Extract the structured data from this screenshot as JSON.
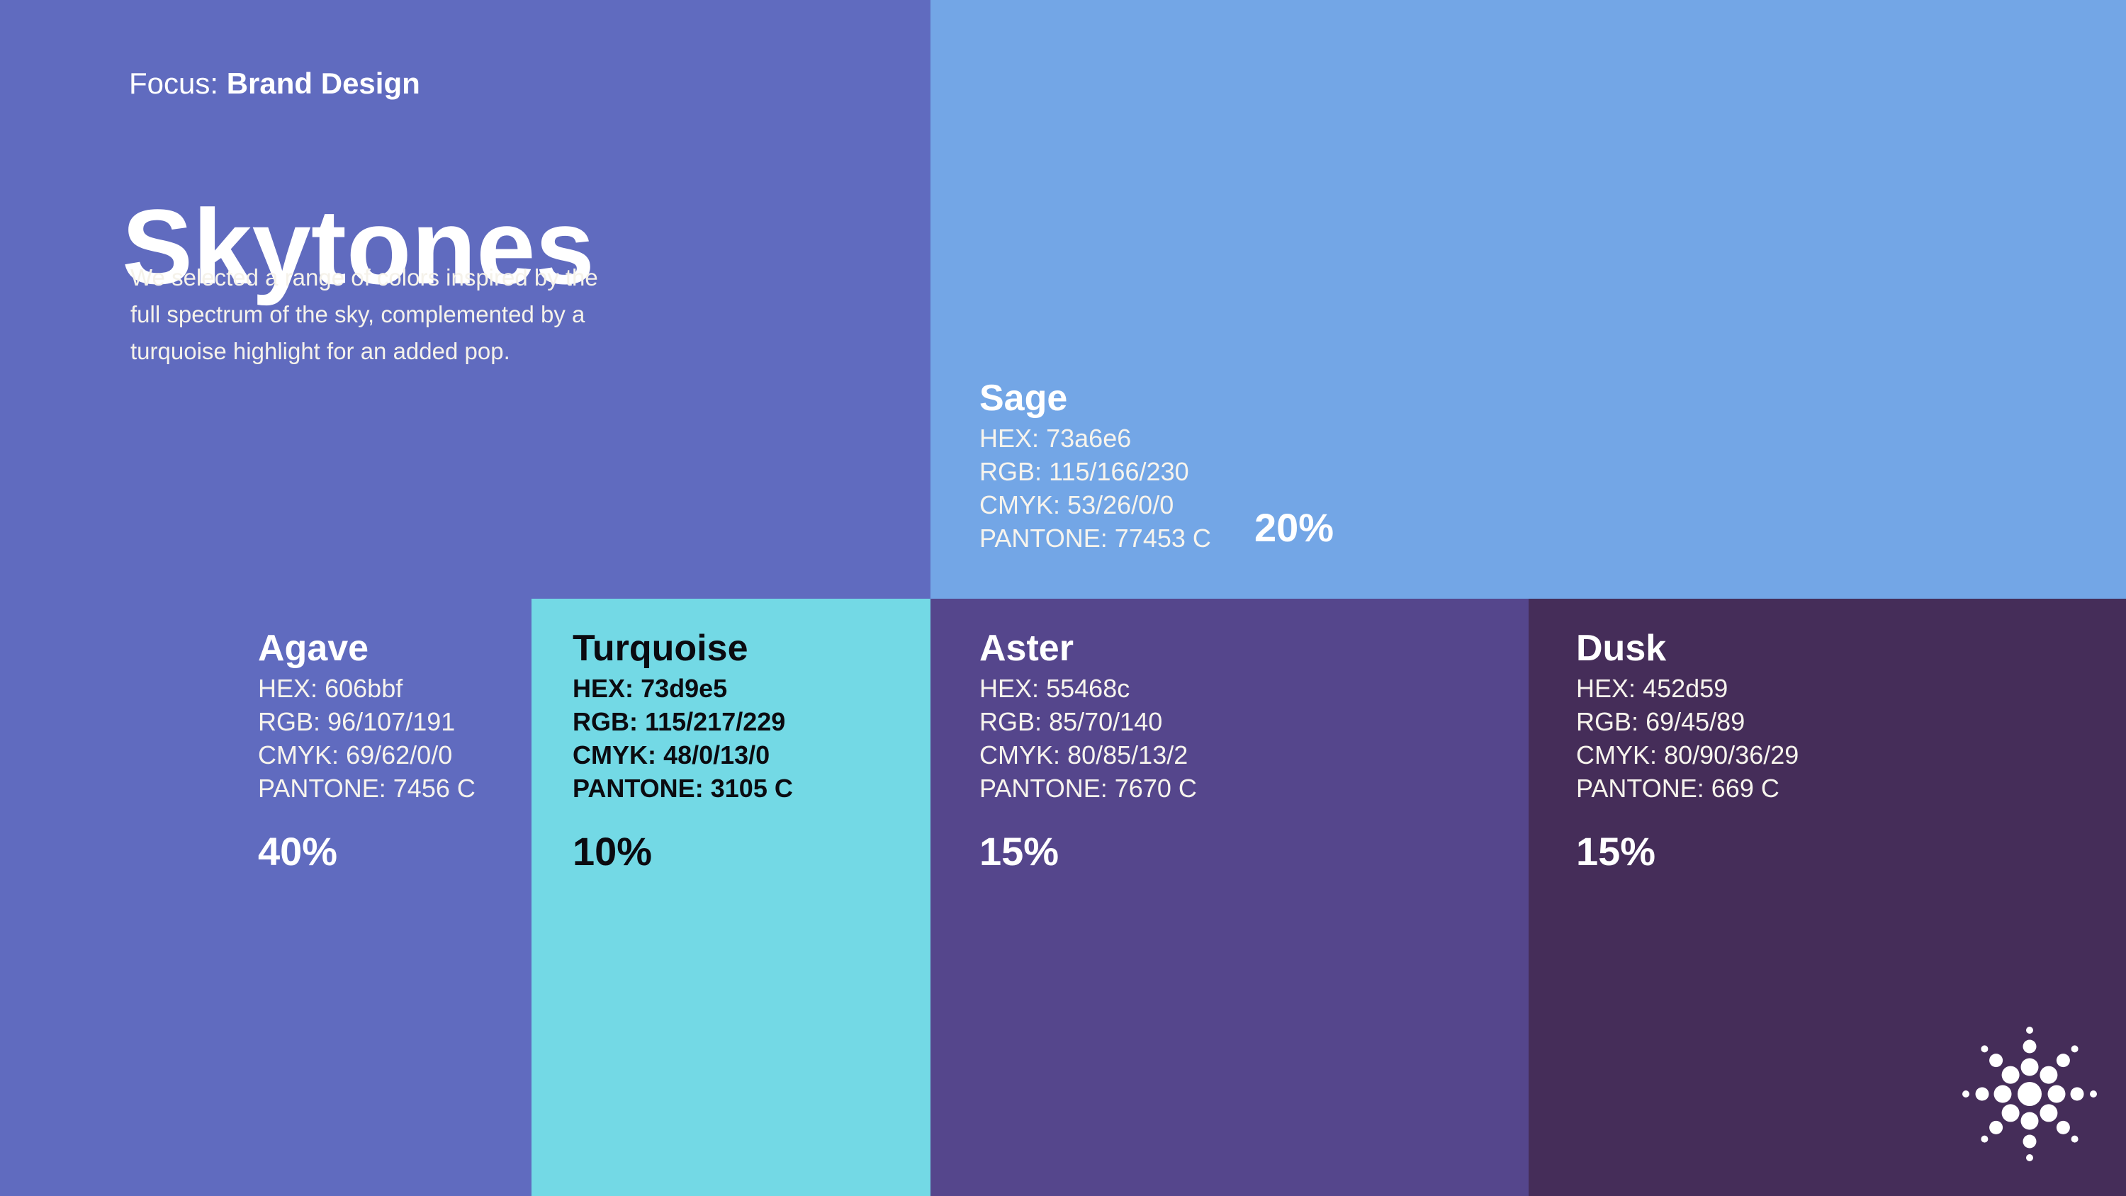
{
  "page": {
    "focus_label": "Focus:",
    "focus_value": "Brand Design",
    "title": "Skytones",
    "description_lines": [
      "We selected a range of colors inspired by the",
      "full spectrum of the sky, complemented by a",
      "turquoise highlight for an added pop."
    ]
  },
  "spec_labels": {
    "hex": "HEX:",
    "rgb": "RGB:",
    "cmyk": "CMYK:",
    "pantone": "PANTONE:"
  },
  "swatches": [
    {
      "name": "Sage",
      "hex": "73a6e6",
      "rgb": "115/166/230",
      "cmyk": "53/26/0/0",
      "pantone": "77453 C",
      "percent": "20%",
      "color": "#73a6e6",
      "text_color": "#ffffff"
    },
    {
      "name": "Agave",
      "hex": "606bbf",
      "rgb": "96/107/191",
      "cmyk": "69/62/0/0",
      "pantone": "7456 C",
      "percent": "40%",
      "color": "#606bbf",
      "text_color": "#ffffff"
    },
    {
      "name": "Turquoise",
      "hex": "73d9e5",
      "rgb": "115/217/229",
      "cmyk": "48/0/13/0",
      "pantone": "3105 C",
      "percent": "10%",
      "color": "#73d9e5",
      "text_color": "#0b0b10"
    },
    {
      "name": "Aster",
      "hex": "55468c",
      "rgb": "85/70/140",
      "cmyk": "80/85/13/2",
      "pantone": "7670 C",
      "percent": "15%",
      "color": "#55468c",
      "text_color": "#ffffff"
    },
    {
      "name": "Dusk",
      "hex": "452d59",
      "rgb": "69/45/89",
      "cmyk": "80/90/36/29",
      "pantone": "669 C",
      "percent": "15%",
      "color": "#452d59",
      "text_color": "#ffffff"
    }
  ],
  "icon": {
    "name": "sunburst-icon",
    "color": "#ffffff"
  },
  "chart_data": {
    "type": "pie",
    "title": "Skytones",
    "subtitle": "Focus: Brand Design",
    "categories": [
      "Agave",
      "Sage",
      "Aster",
      "Dusk",
      "Turquoise"
    ],
    "values": [
      40,
      20,
      15,
      15,
      10
    ],
    "colors": [
      "#606bbf",
      "#73a6e6",
      "#55468c",
      "#452d59",
      "#73d9e5"
    ],
    "legend_position": "labels-on-blocks",
    "layout_hint": "rendered as proportional full-bleed color blocks (treemap-style brand palette slide)"
  }
}
